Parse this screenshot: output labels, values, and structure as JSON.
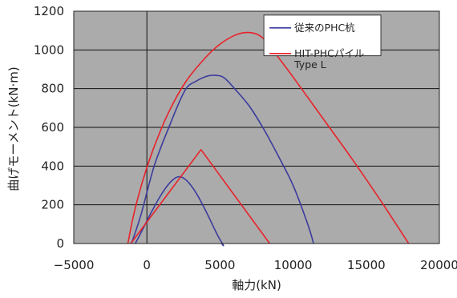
{
  "chart_data": {
    "type": "line",
    "title": "",
    "xlabel": "軸力(kN)",
    "ylabel": "曲げモーメント(kN·m)",
    "xlim": [
      -5000,
      20000
    ],
    "ylim": [
      0,
      1200
    ],
    "xticks": [
      -5000,
      0,
      5000,
      10000,
      15000,
      20000
    ],
    "xtick_labels": [
      "−5000",
      "0",
      "5000",
      "10000",
      "15000",
      "20000"
    ],
    "yticks": [
      0,
      200,
      400,
      600,
      800,
      1000,
      1200
    ],
    "ytick_labels": [
      "0",
      "200",
      "400",
      "600",
      "800",
      "1000",
      "1200"
    ],
    "grid": true,
    "legend_position": "top-right",
    "legend_box": {
      "x_from": 8000,
      "x_to": 16000,
      "y_from": 1180,
      "y_to": 970
    },
    "legend": [
      {
        "series": "conventional",
        "lines": [
          "従来のPHC杭"
        ]
      },
      {
        "series": "hit",
        "lines": [
          "HIT-PHCパイル",
          "Type L"
        ]
      }
    ],
    "series": [
      {
        "name": "従来のPHC杭",
        "key": "conventional",
        "color": "#3b3b9e",
        "curves": [
          [
            [
              -1050,
              0
            ],
            [
              -400,
              150
            ],
            [
              500,
              400
            ],
            [
              1500,
              600
            ],
            [
              2600,
              790
            ],
            [
              3400,
              840
            ],
            [
              4200,
              866
            ],
            [
              4800,
              868
            ],
            [
              5300,
              855
            ],
            [
              6000,
              800
            ],
            [
              7000,
              710
            ],
            [
              8000,
              590
            ],
            [
              9000,
              450
            ],
            [
              10000,
              300
            ],
            [
              11000,
              100
            ],
            [
              11400,
              0
            ]
          ],
          [
            [
              -800,
              0
            ],
            [
              2200,
              345
            ],
            [
              5000,
              20
            ],
            [
              5100,
              0
            ]
          ]
        ]
      },
      {
        "name": "HIT-PHCパイル Type L",
        "key": "hit",
        "color": "#e8222a",
        "curves": [
          [
            [
              -1300,
              0
            ],
            [
              -900,
              150
            ],
            [
              -300,
              320
            ],
            [
              500,
              500
            ],
            [
              1500,
              680
            ],
            [
              2700,
              840
            ],
            [
              4000,
              960
            ],
            [
              5000,
              1030
            ],
            [
              6000,
              1075
            ],
            [
              6800,
              1090
            ],
            [
              7500,
              1082
            ],
            [
              8100,
              1050
            ],
            [
              8600,
              1000
            ],
            [
              10000,
              860
            ],
            [
              12000,
              650
            ],
            [
              14000,
              440
            ],
            [
              16000,
              220
            ],
            [
              17900,
              0
            ]
          ],
          [
            [
              -1100,
              0
            ],
            [
              3700,
              485
            ],
            [
              8400,
              0
            ]
          ]
        ]
      }
    ]
  }
}
